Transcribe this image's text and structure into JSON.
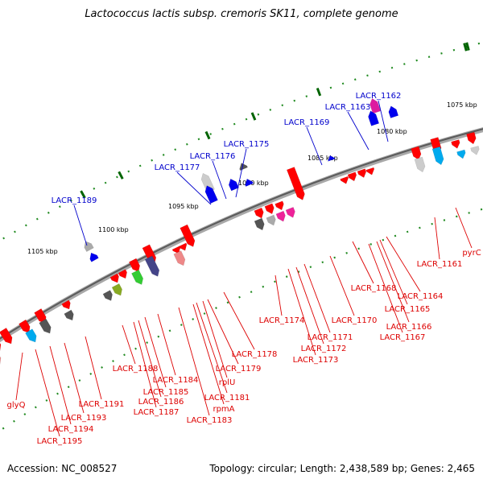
{
  "title": "Lactococcus lactis subsp. cremoris SK11, complete genome",
  "footer": {
    "accession": "Accession: NC_008527",
    "summary": "Topology: circular; Length: 2,438,589 bp; Genes: 2,465"
  },
  "colors": {
    "backbone": "#808080",
    "dotted_track": "#228b22",
    "tick": "#006400",
    "label_top": "#0000cc",
    "label_bottom": "#dd0000",
    "forward_gene": "#0000ff",
    "reverse_gene": "#ff0000"
  },
  "ticks": [
    "1075 kbp",
    "1080 kbp",
    "1085 kbp",
    "1090 kbp",
    "1095 kbp",
    "1100 kbp",
    "1105 kbp"
  ],
  "forward_labels": [
    "LACR_1162",
    "LACR_1163",
    "LACR_1169",
    "LACR_1175",
    "LACR_1176",
    "LACR_1177",
    "LACR_1189"
  ],
  "reverse_labels": [
    "pyrC",
    "LACR_1161",
    "LACR_1164",
    "LACR_1165",
    "LACR_1166",
    "LACR_1167",
    "LACR_1168",
    "LACR_1170",
    "LACR_1171",
    "LACR_1172",
    "LACR_1173",
    "LACR_1174",
    "LACR_1178",
    "LACR_1179",
    "rplU",
    "LACR_1181",
    "rpmA",
    "LACR_1183",
    "LACR_1184",
    "LACR_1185",
    "LACR_1186",
    "LACR_1187",
    "LACR_1188",
    "LACR_1191",
    "LACR_1193",
    "LACR_1194",
    "LACR_1195",
    "glyQ"
  ]
}
